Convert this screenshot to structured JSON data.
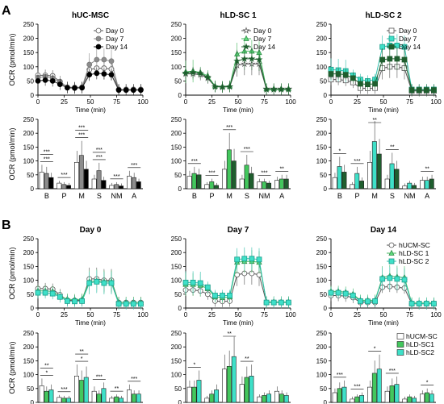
{
  "panel_labels": [
    "A",
    "B"
  ],
  "chart_data": [
    {
      "type": "line",
      "title": "hUC-MSC",
      "xlabel": "Time (min)",
      "ylabel": "OCR (pmol/min)",
      "xlim": [
        0,
        100
      ],
      "ylim": [
        0,
        250
      ],
      "xticks": [
        0,
        25,
        50,
        75,
        100
      ],
      "yticks": [
        0,
        50,
        100,
        150,
        200,
        250
      ],
      "x": [
        0,
        7,
        14,
        21,
        28,
        35,
        42,
        49,
        56,
        63,
        70,
        77,
        84,
        91,
        98
      ],
      "legend_position": "top-right",
      "series": [
        {
          "name": "Day 0",
          "marker": "circle",
          "fill": "#ffffff",
          "stroke": "#555555",
          "line": "#555555",
          "values": [
            70,
            70,
            68,
            48,
            28,
            27,
            28,
            90,
            95,
            95,
            92,
            20,
            20,
            20,
            20
          ]
        },
        {
          "name": "Day 7",
          "marker": "circle",
          "fill": "#8c8c8c",
          "stroke": "#777777",
          "line": "#8c8c8c",
          "values": [
            62,
            65,
            60,
            45,
            28,
            27,
            28,
            108,
            125,
            125,
            120,
            20,
            20,
            20,
            20
          ]
        },
        {
          "name": "Day 14",
          "marker": "circle",
          "fill": "#000000",
          "stroke": "#000000",
          "line": "#222222",
          "values": [
            50,
            53,
            50,
            38,
            26,
            25,
            26,
            72,
            77,
            75,
            72,
            18,
            18,
            18,
            18
          ]
        }
      ]
    },
    {
      "type": "line",
      "title": "hLD-SC 1",
      "xlabel": "Time (min)",
      "ylabel": "",
      "xlim": [
        0,
        100
      ],
      "ylim": [
        0,
        250
      ],
      "xticks": [
        0,
        25,
        50,
        75,
        100
      ],
      "yticks": [
        0,
        50,
        100,
        150,
        200,
        250
      ],
      "x": [
        0,
        7,
        14,
        21,
        28,
        35,
        42,
        49,
        56,
        63,
        70,
        77,
        84,
        91,
        98
      ],
      "legend_position": "top-right",
      "series": [
        {
          "name": "Day 0",
          "marker": "star",
          "fill": "#ffffff",
          "stroke": "#555555",
          "line": "#555555",
          "values": [
            75,
            75,
            72,
            60,
            30,
            28,
            30,
            105,
            110,
            110,
            110,
            22,
            22,
            22,
            22
          ]
        },
        {
          "name": "Day 7",
          "marker": "triangle",
          "fill": "#5fdb7d",
          "stroke": "#2e8b46",
          "line": "#43b75d",
          "values": [
            82,
            85,
            80,
            68,
            32,
            30,
            32,
            145,
            155,
            155,
            150,
            22,
            22,
            22,
            22
          ]
        },
        {
          "name": "Day 14",
          "marker": "star",
          "fill": "#1f5e2e",
          "stroke": "#1f5e2e",
          "line": "#1f5e2e",
          "values": [
            78,
            80,
            77,
            63,
            30,
            29,
            30,
            120,
            128,
            128,
            125,
            20,
            20,
            20,
            20
          ]
        }
      ]
    },
    {
      "type": "line",
      "title": "hLD-SC 2",
      "xlabel": "Time (min)",
      "ylabel": "",
      "xlim": [
        0,
        100
      ],
      "ylim": [
        0,
        250
      ],
      "xticks": [
        0,
        25,
        50,
        75,
        100
      ],
      "yticks": [
        0,
        50,
        100,
        150,
        200,
        250
      ],
      "x": [
        0,
        7,
        14,
        21,
        28,
        35,
        42,
        49,
        56,
        63,
        70,
        77,
        84,
        91,
        98
      ],
      "legend_position": "top-right",
      "series": [
        {
          "name": "Day 0",
          "marker": "square",
          "fill": "#ffffff",
          "stroke": "#555555",
          "line": "#555555",
          "values": [
            55,
            55,
            52,
            45,
            25,
            24,
            25,
            95,
            100,
            100,
            95,
            15,
            15,
            15,
            15
          ]
        },
        {
          "name": "Day 7",
          "marker": "square",
          "fill": "#3ee0c8",
          "stroke": "#1a9c8a",
          "line": "#2fbfab",
          "values": [
            90,
            88,
            85,
            70,
            55,
            50,
            55,
            170,
            175,
            175,
            170,
            20,
            20,
            20,
            20
          ]
        },
        {
          "name": "Day 14",
          "marker": "square",
          "fill": "#1f5e2e",
          "stroke": "#1f5e2e",
          "line": "#1f5e2e",
          "values": [
            75,
            75,
            72,
            60,
            40,
            38,
            40,
            125,
            128,
            128,
            125,
            18,
            18,
            18,
            18
          ]
        }
      ]
    },
    {
      "type": "bar",
      "title": "",
      "xlabel": "",
      "ylabel": "OCR (pmol/min)",
      "ylim": [
        0,
        250
      ],
      "yticks": [
        0,
        50,
        100,
        150,
        200,
        250
      ],
      "categories": [
        "B",
        "P",
        "M",
        "S",
        "NM",
        "A"
      ],
      "series": [
        {
          "name": "Day 0",
          "color": "#ffffff",
          "values": [
            60,
            20,
            95,
            35,
            12,
            45
          ]
        },
        {
          "name": "Day 7",
          "color": "#8c8c8c",
          "values": [
            55,
            15,
            120,
            65,
            15,
            40
          ]
        },
        {
          "name": "Day 14",
          "color": "#000000",
          "values": [
            40,
            12,
            70,
            30,
            10,
            25
          ]
        }
      ],
      "annotations": [
        "***",
        "***",
        "***",
        "***",
        "***",
        "***",
        "***",
        "***",
        "***"
      ]
    },
    {
      "type": "bar",
      "title": "",
      "xlabel": "",
      "ylabel": "",
      "ylim": [
        0,
        250
      ],
      "yticks": [
        0,
        50,
        100,
        150,
        200,
        250
      ],
      "categories": [
        "B",
        "P",
        "M",
        "S",
        "NM",
        "A"
      ],
      "series": [
        {
          "name": "Day 0",
          "color": "#ffffff",
          "values": [
            45,
            15,
            70,
            35,
            25,
            30
          ]
        },
        {
          "name": "Day 7",
          "color": "#43c75d",
          "values": [
            55,
            25,
            140,
            85,
            25,
            35
          ]
        },
        {
          "name": "Day 14",
          "color": "#1f5e2e",
          "values": [
            50,
            12,
            100,
            55,
            20,
            35
          ]
        }
      ],
      "annotations": [
        "***",
        "***",
        "***",
        "**",
        "***",
        "***"
      ]
    },
    {
      "type": "bar",
      "title": "",
      "xlabel": "",
      "ylabel": "",
      "ylim": [
        0,
        250
      ],
      "yticks": [
        0,
        50,
        100,
        150,
        200,
        250
      ],
      "categories": [
        "B",
        "P",
        "M",
        "S",
        "NM",
        "A"
      ],
      "series": [
        {
          "name": "Day 0",
          "color": "#ffffff",
          "values": [
            40,
            15,
            95,
            35,
            10,
            30
          ]
        },
        {
          "name": "Day 7",
          "color": "#3ee0c8",
          "values": [
            80,
            55,
            170,
            90,
            20,
            30
          ]
        },
        {
          "name": "Day 14",
          "color": "#1f5e2e",
          "values": [
            60,
            28,
            125,
            70,
            12,
            35
          ]
        }
      ],
      "annotations": [
        "**",
        "**",
        "*",
        "***",
        "**"
      ]
    },
    {
      "type": "line",
      "title": "Day 0",
      "xlabel": "Time (min)",
      "ylabel": "OCR (pmol/min)",
      "xlim": [
        0,
        100
      ],
      "ylim": [
        0,
        250
      ],
      "xticks": [
        0,
        25,
        50,
        75,
        100
      ],
      "yticks": [
        0,
        50,
        100,
        150,
        200,
        250
      ],
      "x": [
        0,
        7,
        14,
        21,
        28,
        35,
        42,
        49,
        56,
        63,
        70,
        77,
        84,
        91,
        98
      ],
      "series": [
        {
          "name": "hUCM-SC",
          "marker": "circle",
          "fill": "#ffffff",
          "stroke": "#555555",
          "line": "#555555",
          "values": [
            70,
            70,
            68,
            48,
            28,
            27,
            28,
            105,
            105,
            100,
            100,
            20,
            20,
            20,
            20
          ]
        },
        {
          "name": "hLD-SC 1",
          "marker": "triangle",
          "fill": "#5fdb7d",
          "stroke": "#2e8b46",
          "line": "#43b75d",
          "values": [
            62,
            62,
            60,
            42,
            32,
            30,
            32,
            95,
            98,
            95,
            95,
            20,
            20,
            20,
            20
          ]
        },
        {
          "name": "hLD-SC 2",
          "marker": "square",
          "fill": "#3ee0c8",
          "stroke": "#1a9c8a",
          "line": "#2fbfab",
          "values": [
            55,
            55,
            52,
            40,
            25,
            24,
            25,
            90,
            95,
            90,
            90,
            15,
            15,
            15,
            15
          ]
        }
      ]
    },
    {
      "type": "line",
      "title": "Day 7",
      "xlabel": "Time (min)",
      "ylabel": "",
      "xlim": [
        0,
        100
      ],
      "ylim": [
        0,
        250
      ],
      "xticks": [
        0,
        25,
        50,
        75,
        100
      ],
      "yticks": [
        0,
        50,
        100,
        150,
        200,
        250
      ],
      "x": [
        0,
        7,
        14,
        21,
        28,
        35,
        42,
        49,
        56,
        63,
        70,
        77,
        84,
        91,
        98
      ],
      "series": [
        {
          "name": "hUCM-SC",
          "marker": "circle",
          "fill": "#ffffff",
          "stroke": "#555555",
          "line": "#555555",
          "values": [
            65,
            65,
            62,
            50,
            25,
            24,
            25,
            120,
            125,
            125,
            120,
            20,
            20,
            20,
            20
          ]
        },
        {
          "name": "hLD-SC 1",
          "marker": "triangle",
          "fill": "#5fdb7d",
          "stroke": "#2e8b46",
          "line": "#43b75d",
          "values": [
            85,
            85,
            82,
            70,
            40,
            38,
            40,
            165,
            168,
            168,
            165,
            22,
            22,
            22,
            22
          ]
        },
        {
          "name": "hLD-SC 2",
          "marker": "square",
          "fill": "#3ee0c8",
          "stroke": "#1a9c8a",
          "line": "#2fbfab",
          "values": [
            92,
            92,
            90,
            75,
            45,
            45,
            45,
            175,
            178,
            178,
            175,
            20,
            20,
            20,
            20
          ]
        }
      ]
    },
    {
      "type": "line",
      "title": "Day 14",
      "xlabel": "Time (min)",
      "ylabel": "",
      "xlim": [
        0,
        100
      ],
      "ylim": [
        0,
        250
      ],
      "xticks": [
        0,
        25,
        50,
        75,
        100
      ],
      "yticks": [
        0,
        50,
        100,
        150,
        200,
        250
      ],
      "x": [
        0,
        7,
        14,
        21,
        28,
        35,
        42,
        49,
        56,
        63,
        70,
        77,
        84,
        91,
        98
      ],
      "legend_position": "top-right",
      "series": [
        {
          "name": "hUCM-SC",
          "marker": "circle",
          "fill": "#ffffff",
          "stroke": "#555555",
          "line": "#555555",
          "values": [
            45,
            45,
            43,
            38,
            20,
            20,
            20,
            75,
            78,
            75,
            72,
            15,
            15,
            15,
            15
          ]
        },
        {
          "name": "hLD-SC 1",
          "marker": "triangle",
          "fill": "#5fdb7d",
          "stroke": "#2e8b46",
          "line": "#43b75d",
          "values": [
            60,
            60,
            57,
            50,
            28,
            28,
            28,
            110,
            115,
            112,
            110,
            18,
            18,
            18,
            18
          ]
        },
        {
          "name": "hLD-SC 2",
          "marker": "square",
          "fill": "#3ee0c8",
          "stroke": "#1a9c8a",
          "line": "#2fbfab",
          "values": [
            55,
            55,
            52,
            45,
            25,
            24,
            25,
            105,
            108,
            105,
            102,
            16,
            16,
            16,
            16
          ]
        }
      ]
    },
    {
      "type": "bar",
      "title": "",
      "xlabel": "",
      "ylabel": "OCR (pmol/min)",
      "ylim": [
        0,
        250
      ],
      "yticks": [
        0,
        50,
        100,
        150,
        200,
        250
      ],
      "categories": [
        "B",
        "P",
        "M",
        "S",
        "NM",
        "A"
      ],
      "series": [
        {
          "name": "hUCM-SC",
          "color": "#ffffff",
          "values": [
            60,
            18,
            95,
            40,
            15,
            45
          ]
        },
        {
          "name": "hLD-SC1",
          "color": "#43c75d",
          "values": [
            40,
            15,
            80,
            30,
            20,
            30
          ]
        },
        {
          "name": "hLD-SC2",
          "color": "#3ee0c8",
          "values": [
            45,
            15,
            90,
            50,
            15,
            30
          ]
        }
      ],
      "annotations": [
        "*",
        "*",
        "***",
        "***",
        "**",
        "***",
        "**",
        "**"
      ]
    },
    {
      "type": "bar",
      "title": "",
      "xlabel": "",
      "ylabel": "",
      "ylim": [
        0,
        250
      ],
      "yticks": [
        0,
        50,
        100,
        150,
        200,
        250
      ],
      "categories": [
        "B",
        "P",
        "M",
        "S",
        "NM",
        "A"
      ],
      "series": [
        {
          "name": "hUCM-SC",
          "color": "#ffffff",
          "values": [
            55,
            15,
            120,
            65,
            20,
            40
          ]
        },
        {
          "name": "hLD-SC1",
          "color": "#43c75d",
          "values": [
            55,
            30,
            130,
            90,
            25,
            30
          ]
        },
        {
          "name": "hLD-SC2",
          "color": "#3ee0c8",
          "values": [
            80,
            45,
            165,
            95,
            30,
            25
          ]
        }
      ],
      "annotations": [
        "**",
        "**",
        "*"
      ]
    },
    {
      "type": "bar",
      "title": "",
      "xlabel": "",
      "ylabel": "",
      "ylim": [
        0,
        250
      ],
      "yticks": [
        0,
        50,
        100,
        150,
        200,
        250
      ],
      "categories": [
        "B",
        "P",
        "M",
        "S",
        "NM",
        "A"
      ],
      "legend_position": "top-right",
      "series": [
        {
          "name": "hUCM-SC",
          "color": "#ffffff",
          "values": [
            35,
            12,
            55,
            40,
            12,
            30
          ]
        },
        {
          "name": "hLD-SC1",
          "color": "#43c75d",
          "values": [
            50,
            20,
            105,
            60,
            20,
            35
          ]
        },
        {
          "name": "hLD-SC2",
          "color": "#3ee0c8",
          "values": [
            55,
            25,
            120,
            65,
            15,
            30
          ]
        }
      ],
      "annotations": [
        "*",
        "***",
        "***",
        "*",
        "***"
      ]
    }
  ]
}
